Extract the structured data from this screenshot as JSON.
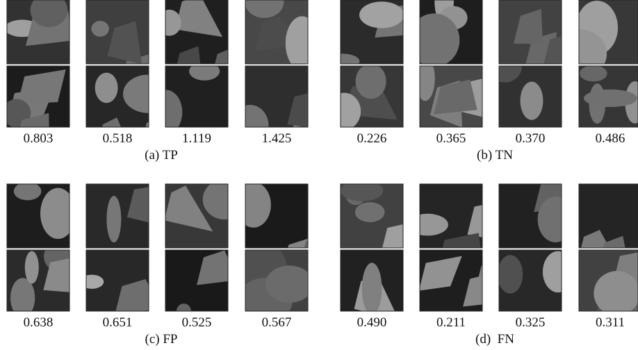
{
  "panels": [
    {
      "caption": "(a) TP",
      "scores": [
        "0.803",
        "0.518",
        "1.119",
        "1.425"
      ]
    },
    {
      "caption": "(b) TN",
      "scores": [
        "0.226",
        "0.365",
        "0.370",
        "0.486"
      ]
    },
    {
      "caption": "(c) FP",
      "scores": [
        "0.638",
        "0.651",
        "0.525",
        "0.567"
      ]
    },
    {
      "caption": "(d)  FN",
      "scores": [
        "0.490",
        "0.211",
        "0.325",
        "0.311"
      ]
    }
  ]
}
